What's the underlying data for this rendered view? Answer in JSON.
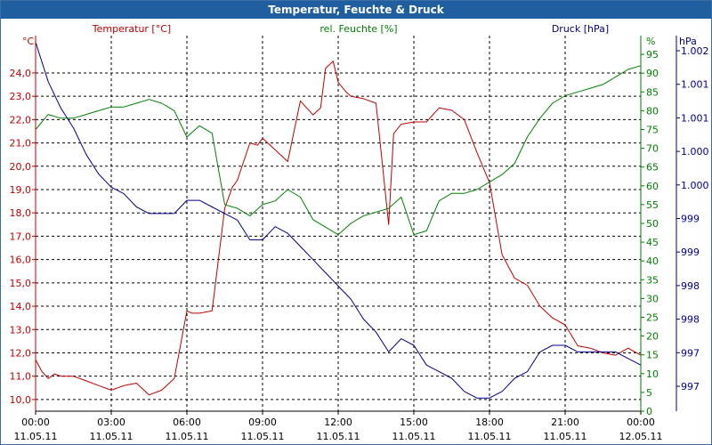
{
  "window": {
    "title": "Temperatur, Feuchte & Druck"
  },
  "colors": {
    "temperature": "#c00000",
    "humidity": "#008000",
    "pressure": "#00008b",
    "grid": "#000000",
    "titlebar": "#1f5f9f"
  },
  "chart_data": {
    "type": "line",
    "title": "Temperatur, Feuchte & Druck",
    "grid": true,
    "x_axis": {
      "range": [
        "11.05.11 00:00",
        "12.05.11 00:00"
      ],
      "ticks": [
        {
          "time": "00:00",
          "date": "11.05.11"
        },
        {
          "time": "03:00",
          "date": "11.05.11"
        },
        {
          "time": "06:00",
          "date": "11.05.11"
        },
        {
          "time": "09:00",
          "date": "11.05.11"
        },
        {
          "time": "12:00",
          "date": "11.05.11"
        },
        {
          "time": "15:00",
          "date": "11.05.11"
        },
        {
          "time": "18:00",
          "date": "11.05.11"
        },
        {
          "time": "21:00",
          "date": "11.05.11"
        },
        {
          "time": "00:00",
          "date": "12.05.11"
        }
      ]
    },
    "axes": {
      "temperature": {
        "label": "Temperatur [°C]",
        "unit": "°C",
        "range": [
          9.5,
          25.6
        ],
        "ticks": [
          "10,0",
          "11,0",
          "12,0",
          "13,0",
          "14,0",
          "15,0",
          "16,0",
          "17,0",
          "18,0",
          "19,0",
          "20,0",
          "21,0",
          "22,0",
          "23,0",
          "24,0"
        ]
      },
      "humidity": {
        "label": "rel. Feuchte [%]",
        "unit": "%",
        "range": [
          0,
          100
        ],
        "ticks": [
          "0",
          "5",
          "10",
          "15",
          "20",
          "25",
          "30",
          "35",
          "40",
          "45",
          "50",
          "55",
          "60",
          "65",
          "70",
          "75",
          "80",
          "85",
          "90",
          "95"
        ]
      },
      "pressure": {
        "label": "Druck [hPa]",
        "unit": "hPa",
        "range": [
          996.6,
          1002.3
        ],
        "ticks": [
          "997",
          "997",
          "998",
          "998",
          "999",
          "999",
          "1.000",
          "1.000",
          "1.001",
          "1.001",
          "1.002"
        ]
      }
    },
    "series": [
      {
        "name": "Temperatur [°C]",
        "axis": "temperature",
        "x": [
          0,
          0.25,
          0.5,
          0.75,
          1,
          1.5,
          2,
          2.5,
          3,
          3.5,
          4,
          4.5,
          5,
          5.5,
          6,
          6.2,
          6.5,
          7,
          7.5,
          7.8,
          8,
          8.5,
          8.8,
          9,
          9.5,
          10,
          10.5,
          11,
          11.3,
          11.5,
          11.8,
          12,
          12.3,
          12.5,
          13,
          13.5,
          14,
          14.2,
          14.5,
          15,
          15.5,
          16,
          16.5,
          17,
          17.5,
          18,
          18.5,
          19,
          19.5,
          20,
          20.5,
          21,
          21.5,
          22,
          22.5,
          23,
          23.5,
          24
        ],
        "values": [
          11.7,
          11.2,
          10.9,
          11.1,
          11.0,
          11.0,
          10.8,
          10.6,
          10.4,
          10.6,
          10.7,
          10.2,
          10.4,
          10.9,
          13.8,
          13.7,
          13.7,
          13.8,
          18.2,
          19.1,
          19.4,
          21.0,
          20.9,
          21.2,
          20.7,
          20.2,
          22.8,
          22.2,
          22.5,
          24.2,
          24.5,
          23.6,
          23.2,
          23.0,
          22.9,
          22.7,
          17.5,
          21.4,
          21.8,
          21.9,
          21.9,
          22.5,
          22.4,
          22.0,
          20.6,
          19.3,
          16.2,
          15.2,
          14.9,
          14.0,
          13.5,
          13.2,
          12.3,
          12.2,
          12.0,
          11.9,
          12.2,
          11.9
        ]
      },
      {
        "name": "rel. Feuchte [%]",
        "axis": "humidity",
        "x": [
          0,
          0.5,
          1,
          1.5,
          2,
          2.5,
          3,
          3.5,
          4,
          4.5,
          5,
          5.5,
          6,
          6.5,
          7,
          7.5,
          8,
          8.5,
          9,
          9.5,
          10,
          10.5,
          11,
          11.5,
          12,
          12.5,
          13,
          13.5,
          14,
          14.5,
          15,
          15.5,
          16,
          16.5,
          17,
          17.5,
          18,
          18.5,
          19,
          19.5,
          20,
          20.5,
          21,
          21.5,
          22,
          22.5,
          23,
          23.5,
          24
        ],
        "values": [
          75,
          79,
          78,
          78,
          79,
          80,
          81,
          81,
          82,
          83,
          82,
          80,
          73,
          76,
          74,
          55,
          54,
          52,
          55,
          56,
          59,
          57,
          51,
          49,
          47,
          50,
          52,
          53,
          54,
          57,
          47,
          48,
          56,
          58,
          58,
          59,
          61,
          63,
          66,
          73,
          78,
          82,
          84,
          85,
          86,
          87,
          89,
          91,
          92
        ]
      },
      {
        "name": "Druck [hPa]",
        "axis": "pressure",
        "x": [
          0,
          0.5,
          1,
          1.5,
          2,
          2.5,
          3,
          3.5,
          4,
          4.5,
          5,
          5.5,
          6,
          6.5,
          7,
          7.5,
          8,
          8.5,
          9,
          9.5,
          10,
          10.5,
          11,
          11.5,
          12,
          12.5,
          13,
          13.5,
          14,
          14.5,
          15,
          15.5,
          16,
          16.5,
          17,
          17.5,
          18,
          18.5,
          19,
          19.5,
          20,
          20.5,
          21,
          21.5,
          22,
          22.5,
          23,
          23.5,
          24
        ],
        "values": [
          1002.2,
          1001.6,
          1001.2,
          1000.9,
          1000.5,
          1000.2,
          1000.0,
          999.9,
          999.7,
          999.6,
          999.6,
          999.6,
          999.8,
          999.8,
          999.7,
          999.6,
          999.5,
          999.2,
          999.2,
          999.4,
          999.3,
          999.1,
          998.9,
          998.7,
          998.5,
          998.3,
          998.0,
          997.8,
          997.5,
          997.7,
          997.6,
          997.3,
          997.2,
          997.1,
          996.9,
          996.8,
          996.8,
          996.9,
          997.1,
          997.2,
          997.5,
          997.6,
          997.6,
          997.5,
          997.5,
          997.5,
          997.5,
          997.4,
          997.3
        ]
      }
    ]
  }
}
